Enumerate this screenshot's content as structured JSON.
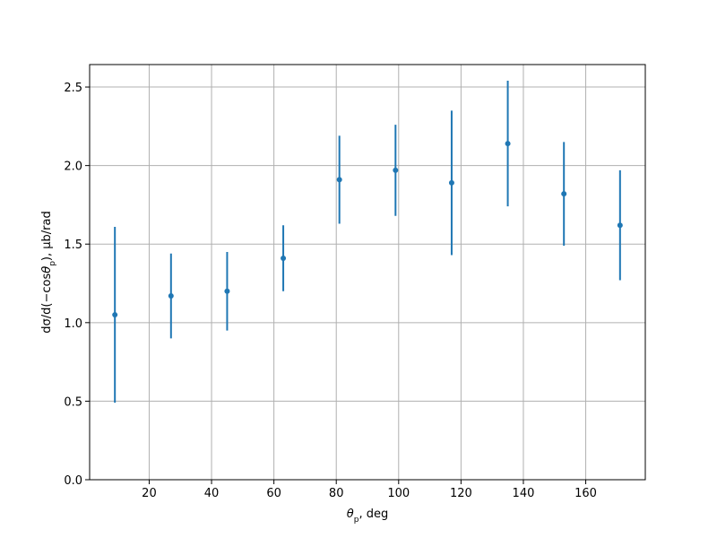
{
  "chart_data": {
    "type": "errorbar",
    "xlabel": [
      {
        "text": "θ",
        "style": "italic"
      },
      {
        "text": "p",
        "style": "sub"
      },
      {
        "text": ", deg"
      }
    ],
    "ylabel": [
      {
        "text": "dσ/d(−cos"
      },
      {
        "text": "θ",
        "style": "italic"
      },
      {
        "text": "p",
        "style": "sub"
      },
      {
        "text": "), μb/rad"
      }
    ],
    "x": [
      9,
      27,
      45,
      63,
      81,
      99,
      117,
      135,
      153,
      171
    ],
    "series": [
      {
        "color": "#1f77b4",
        "values": [
          1.05,
          1.17,
          1.2,
          1.41,
          1.91,
          1.97,
          1.89,
          2.14,
          1.82,
          1.62
        ],
        "errors": [
          0.56,
          0.27,
          0.25,
          0.21,
          0.28,
          0.29,
          0.46,
          0.4,
          0.33,
          0.35
        ]
      }
    ],
    "xlim": [
      0.9,
      179.1
    ],
    "ylim": [
      0,
      2.643
    ],
    "xticks": [
      20,
      40,
      60,
      80,
      100,
      120,
      140,
      160
    ],
    "yticks": [
      {
        "value": 0,
        "label": "0.0"
      },
      0.5,
      {
        "value": 1,
        "label": "1.0"
      },
      1.5,
      {
        "value": 2,
        "label": "2.0"
      },
      2.5
    ],
    "grid": true,
    "grid_color": "#b0b0b0"
  }
}
